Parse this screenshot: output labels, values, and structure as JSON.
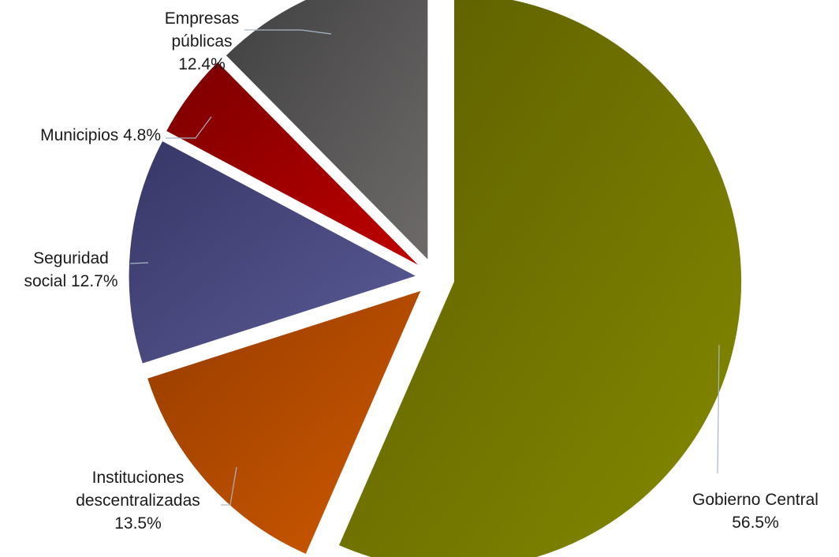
{
  "chart_data": {
    "type": "pie",
    "title": "",
    "legend": "none",
    "exploded": true,
    "slices": [
      {
        "key": "gobierno",
        "label_lines": [
          "Gobierno Central",
          "56.5%"
        ],
        "name": "Gobierno Central",
        "value": 56.5,
        "color_dark": "#5b5c00",
        "color_light": "#858a00"
      },
      {
        "key": "instituciones",
        "label_lines": [
          "Instituciones",
          "descentralizadas",
          "13.5%"
        ],
        "name": "Instituciones descentralizadas",
        "value": 13.5,
        "color_dark": "#953b00",
        "color_light": "#cf5a00"
      },
      {
        "key": "seguridad",
        "label_lines": [
          "Seguridad",
          "social 12.7%"
        ],
        "name": "Seguridad social",
        "value": 12.7,
        "color_dark": "#363666",
        "color_light": "#5c5c98"
      },
      {
        "key": "municipios",
        "label_lines": [
          "Municipios 4.8%"
        ],
        "name": "Municipios",
        "value": 4.8,
        "color_dark": "#7a0000",
        "color_light": "#c00000"
      },
      {
        "key": "empresas",
        "label_lines": [
          "Empresas",
          "públicas",
          "12.4%"
        ],
        "name": "Empresas públicas",
        "value": 12.4,
        "color_dark": "#3f3f3f",
        "color_light": "#6e6a6a"
      }
    ]
  }
}
